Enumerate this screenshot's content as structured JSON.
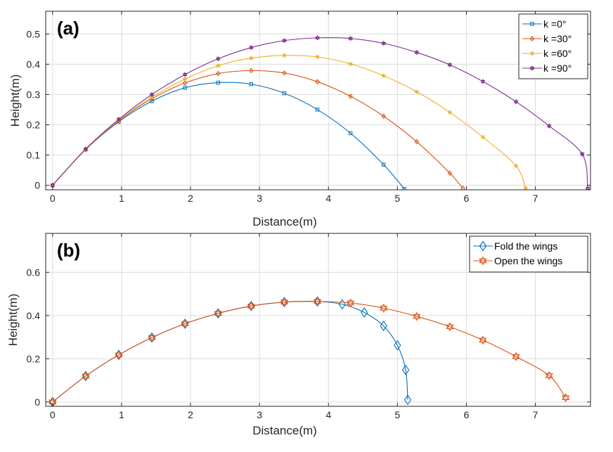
{
  "chart_data": [
    {
      "type": "line",
      "panel_label": "(a)",
      "xlabel": "Distance(m)",
      "ylabel": "Height(m)",
      "xlim": [
        -0.1,
        7.8
      ],
      "ylim": [
        -0.015,
        0.575
      ],
      "xticks": [
        0,
        1,
        2,
        3,
        4,
        5,
        6,
        7
      ],
      "yticks": [
        0,
        0.1,
        0.2,
        0.3,
        0.4,
        0.5
      ],
      "ytick_labels": [
        "0",
        "0.1",
        "0.2",
        "0.3",
        "0.4",
        "0.5"
      ],
      "grid": true,
      "legend_position": "top-right",
      "series": [
        {
          "name": "k =0°",
          "color": "#0072BD",
          "marker": "square",
          "x": [
            0,
            0.48,
            0.96,
            1.44,
            1.92,
            2.4,
            2.88,
            3.36,
            3.84,
            4.32,
            4.8,
            5.1,
            5.15
          ],
          "y": [
            0,
            0.118,
            0.21,
            0.278,
            0.322,
            0.339,
            0.334,
            0.304,
            0.25,
            0.172,
            0.068,
            -0.012,
            -0.03
          ]
        },
        {
          "name": "k =30°",
          "color": "#D95319",
          "marker": "diamond",
          "x": [
            0,
            0.48,
            0.96,
            1.44,
            1.92,
            2.4,
            2.88,
            3.36,
            3.84,
            4.32,
            4.8,
            5.28,
            5.76,
            5.95
          ],
          "y": [
            0,
            0.118,
            0.213,
            0.286,
            0.338,
            0.369,
            0.379,
            0.371,
            0.342,
            0.294,
            0.228,
            0.144,
            0.04,
            -0.01
          ]
        },
        {
          "name": "k =60°",
          "color": "#EDB120",
          "marker": "star",
          "x": [
            0,
            0.48,
            0.96,
            1.44,
            1.92,
            2.4,
            2.88,
            3.36,
            3.84,
            4.32,
            4.8,
            5.28,
            5.76,
            6.24,
            6.72,
            6.86
          ],
          "y": [
            0,
            0.119,
            0.215,
            0.291,
            0.351,
            0.395,
            0.42,
            0.429,
            0.424,
            0.401,
            0.362,
            0.309,
            0.241,
            0.159,
            0.064,
            -0.01
          ]
        },
        {
          "name": "k =90°",
          "color": "#7E2F8E",
          "marker": "hexagram",
          "x": [
            0,
            0.48,
            0.96,
            1.44,
            1.92,
            2.4,
            2.88,
            3.36,
            3.84,
            4.32,
            4.8,
            5.28,
            5.76,
            6.24,
            6.72,
            7.2,
            7.68,
            7.76
          ],
          "y": [
            0,
            0.12,
            0.218,
            0.3,
            0.366,
            0.418,
            0.455,
            0.478,
            0.487,
            0.485,
            0.469,
            0.439,
            0.398,
            0.343,
            0.276,
            0.196,
            0.103,
            -0.01
          ]
        }
      ]
    },
    {
      "type": "line",
      "panel_label": "(b)",
      "xlabel": "Distance(m)",
      "ylabel": "Height(m)",
      "xlim": [
        -0.1,
        7.8
      ],
      "ylim": [
        -0.02,
        0.78
      ],
      "xticks": [
        0,
        1,
        2,
        3,
        4,
        5,
        6,
        7
      ],
      "yticks": [
        0,
        0.2,
        0.4,
        0.6
      ],
      "ytick_labels": [
        "0",
        "0.2",
        "0.4",
        "0.6"
      ],
      "grid": true,
      "legend_position": "top-right",
      "series": [
        {
          "name": "Fold the wings",
          "color": "#0072BD",
          "marker": "diamond",
          "x": [
            0,
            0.48,
            0.96,
            1.44,
            1.92,
            2.4,
            2.88,
            3.36,
            3.84,
            4.2,
            4.52,
            4.8,
            5.0,
            5.12,
            5.15
          ],
          "y": [
            0,
            0.12,
            0.218,
            0.298,
            0.362,
            0.41,
            0.444,
            0.462,
            0.465,
            0.452,
            0.414,
            0.352,
            0.262,
            0.148,
            0.01
          ]
        },
        {
          "name": "Open the wings",
          "color": "#D95319",
          "marker": "hexagram",
          "x": [
            0,
            0.48,
            0.96,
            1.44,
            1.92,
            2.4,
            2.88,
            3.36,
            3.84,
            4.32,
            4.8,
            5.28,
            5.76,
            6.24,
            6.72,
            7.2,
            7.44
          ],
          "y": [
            0,
            0.12,
            0.218,
            0.298,
            0.362,
            0.41,
            0.444,
            0.462,
            0.465,
            0.458,
            0.434,
            0.396,
            0.348,
            0.286,
            0.21,
            0.122,
            0.02
          ]
        }
      ]
    }
  ]
}
